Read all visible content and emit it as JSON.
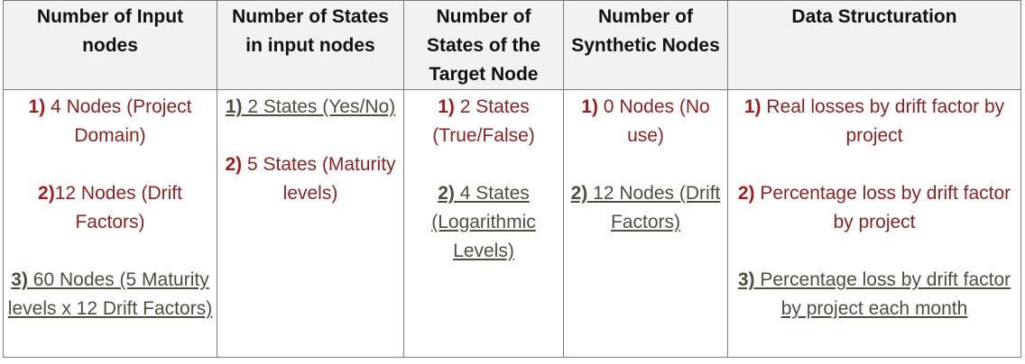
{
  "headers": [
    "Number of Input nodes",
    "Number of States in input nodes",
    "Number of States of the Target Node",
    "Number of Synthetic Nodes",
    "Data Structuration"
  ],
  "columns": [
    {
      "items": [
        {
          "num": "1)",
          "text": " 4 Nodes (Project Domain)"
        },
        {
          "num": "2)",
          "text": "12 Nodes (Drift Factors)"
        },
        {
          "num": "3)",
          "text": " 60 Nodes (5 Maturity levels x 12 Drift Factors)"
        }
      ]
    },
    {
      "items": [
        {
          "num": "1)",
          "text": " 2 States (Yes/No)"
        },
        {
          "num": "2)",
          "text": " 5 States (Maturity levels)"
        }
      ]
    },
    {
      "items": [
        {
          "num": "1)",
          "text": " 2 States (True/False)"
        },
        {
          "num": "2)",
          "text": " 4 States (Logarithmic Levels)"
        }
      ]
    },
    {
      "items": [
        {
          "num": "1)",
          "text": " 0 Nodes (No use)"
        },
        {
          "num": "2)",
          "text": " 12 Nodes (Drift Factors)"
        }
      ]
    },
    {
      "items": [
        {
          "num": "1)",
          "text": " Real losses by drift factor by project"
        },
        {
          "num": "2)",
          "text": " Percentage loss by drift factor by project"
        },
        {
          "num": "3)",
          "text": " Percentage loss by drift factor by project each month"
        }
      ]
    }
  ]
}
